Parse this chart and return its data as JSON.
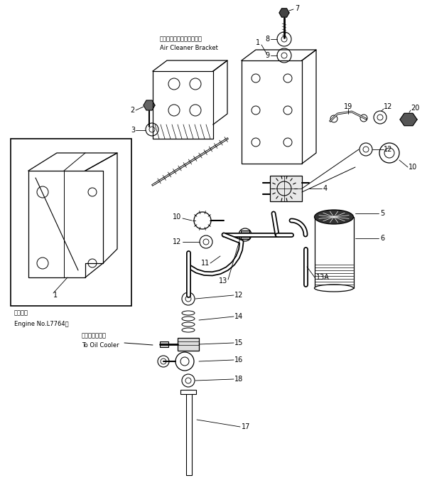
{
  "background_color": "#ffffff",
  "fig_width": 6.01,
  "fig_height": 6.79,
  "dpi": 100,
  "labels": {
    "air_cleaner_jp": "エアークリーナブラケット",
    "air_cleaner_en": "Air Cleaner Bracket",
    "engine_jp": "適用号機",
    "engine_en": "Engine No.L7764～",
    "oil_cooler_jp": "オイルクーラへ",
    "oil_cooler_en": "To Oil Cooler"
  }
}
